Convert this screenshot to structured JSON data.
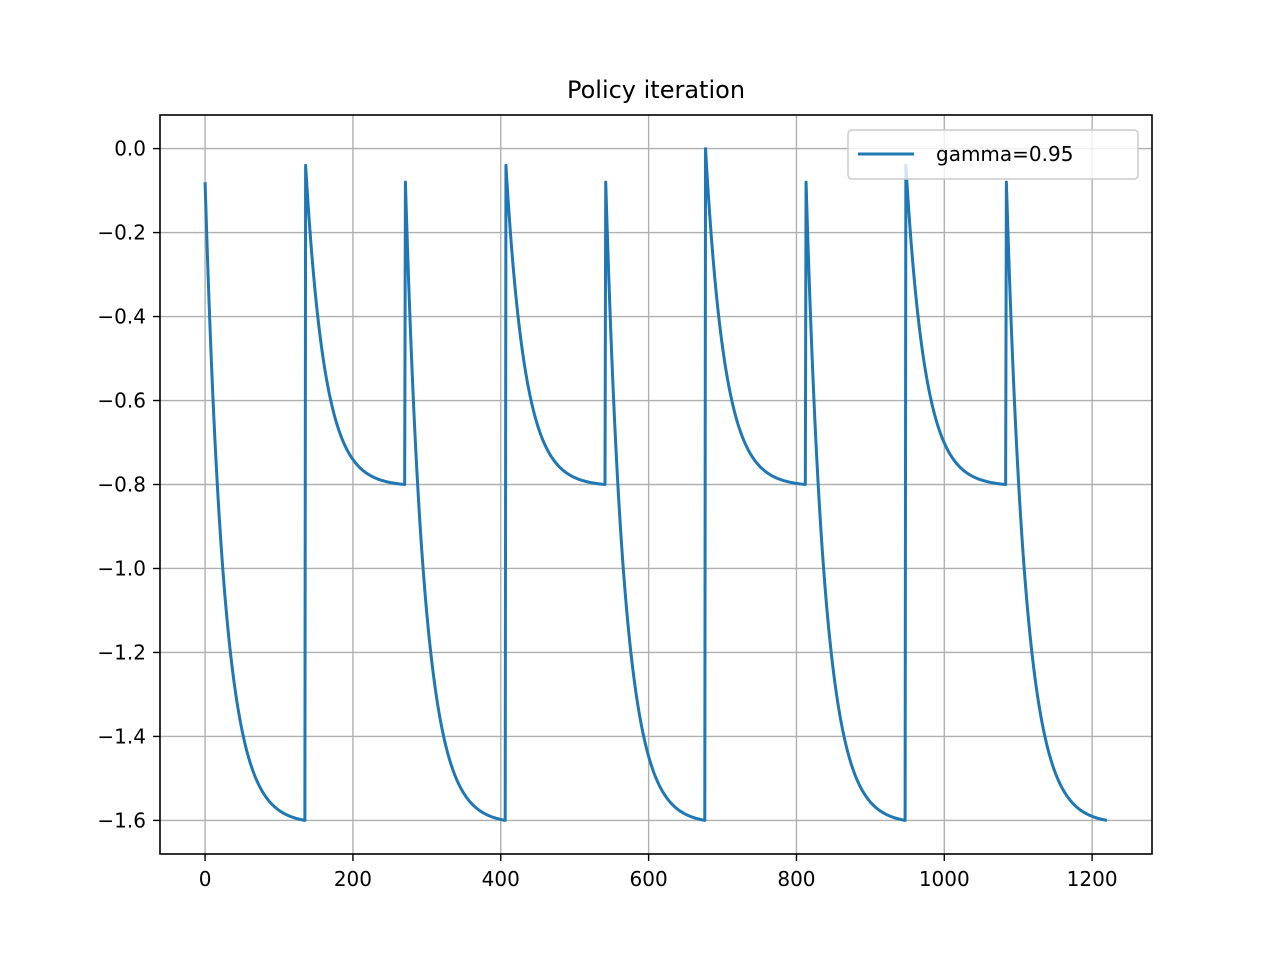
{
  "chart_data": {
    "type": "line",
    "title": "Policy iteration",
    "xlabel": "",
    "ylabel": "",
    "xlim": [
      -61,
      1281
    ],
    "ylim": [
      -1.68,
      0.08
    ],
    "xticks": [
      0,
      200,
      400,
      600,
      800,
      1000,
      1200
    ],
    "xtick_labels": [
      "0",
      "200",
      "400",
      "600",
      "800",
      "1000",
      "1200"
    ],
    "yticks": [
      0.0,
      -0.2,
      -0.4,
      -0.6,
      -0.8,
      -1.0,
      -1.2,
      -1.4,
      -1.6
    ],
    "ytick_labels": [
      "0.0",
      "−0.2",
      "−0.4",
      "−0.6",
      "−0.8",
      "−1.0",
      "−1.2",
      "−1.4",
      "−1.6"
    ],
    "grid": true,
    "legend_position": "top-right",
    "series": [
      {
        "name": "gamma=0.95",
        "color": "#1f77b4",
        "segments": [
          {
            "x_start": 0,
            "x_end": 135,
            "y_start": -0.08,
            "y_end": -1.6
          },
          {
            "x_start": 136,
            "x_end": 270,
            "y_start": -0.04,
            "y_end": -0.8
          },
          {
            "x_start": 271,
            "x_end": 406,
            "y_start": -0.08,
            "y_end": -1.6
          },
          {
            "x_start": 407,
            "x_end": 541,
            "y_start": -0.04,
            "y_end": -0.8
          },
          {
            "x_start": 542,
            "x_end": 676,
            "y_start": -0.08,
            "y_end": -1.6
          },
          {
            "x_start": 677,
            "x_end": 812,
            "y_start": 0.0,
            "y_end": -0.8
          },
          {
            "x_start": 813,
            "x_end": 947,
            "y_start": -0.08,
            "y_end": -1.6
          },
          {
            "x_start": 948,
            "x_end": 1083,
            "y_start": -0.04,
            "y_end": -0.8
          },
          {
            "x_start": 1084,
            "x_end": 1220,
            "y_start": -0.08,
            "y_end": -1.6
          }
        ]
      }
    ]
  }
}
